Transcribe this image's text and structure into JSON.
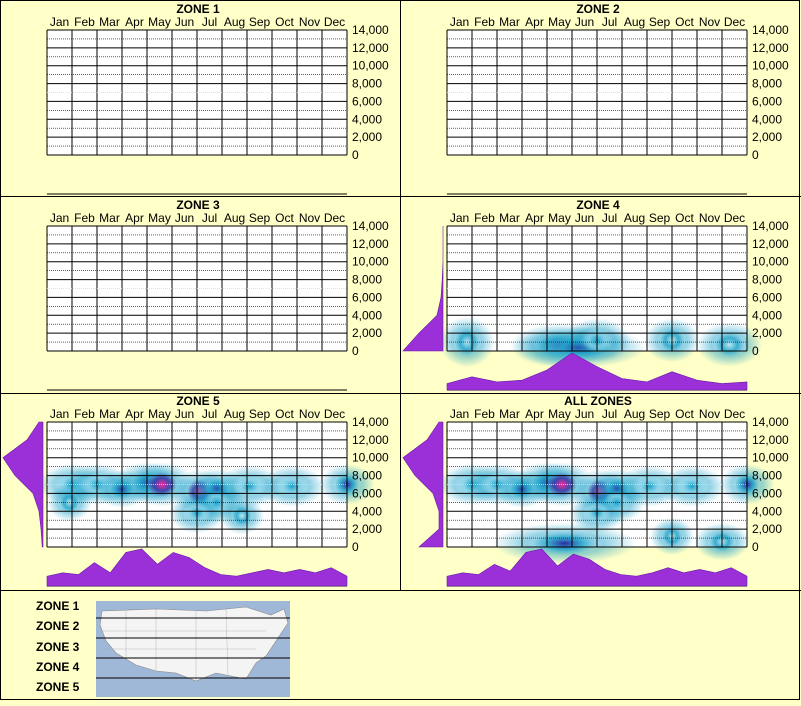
{
  "months": [
    "Jan",
    "Feb",
    "Mar",
    "Apr",
    "May",
    "Jun",
    "Jul",
    "Aug",
    "Sep",
    "Oct",
    "Nov",
    "Dec"
  ],
  "y_ticks": [
    "0",
    "2,000",
    "4,000",
    "6,000",
    "8,000",
    "10,000",
    "12,000",
    "14,000"
  ],
  "colors": {
    "background": "#ffffc8",
    "grid": "#000000",
    "density": "#9b30d8",
    "heat_low": "#bfe8f0",
    "heat_mid": "#1aa0c8",
    "heat_high": "#2a2aa0",
    "heat_peak": "#ff2aa0"
  },
  "chart_data": [
    {
      "type": "heatmap",
      "title": "ZONE 1",
      "ylim": [
        0,
        14000
      ],
      "cells": [],
      "month_profile": [],
      "elev_profile": []
    },
    {
      "type": "heatmap",
      "title": "ZONE 2",
      "ylim": [
        0,
        14000
      ],
      "cells": [],
      "month_profile": [],
      "elev_profile": []
    },
    {
      "type": "heatmap",
      "title": "ZONE 3",
      "ylim": [
        0,
        14000
      ],
      "cells": [],
      "month_profile": [],
      "elev_profile": []
    },
    {
      "type": "heatmap",
      "title": "ZONE 4",
      "ylim": [
        0,
        14000
      ],
      "cells": [
        {
          "month": 0.3,
          "elev": 1000,
          "w": 0.5,
          "h": 900,
          "v": 0.25
        },
        {
          "month": 4.0,
          "elev": 600,
          "w": 0.9,
          "h": 700,
          "v": 0.7
        },
        {
          "month": 4.8,
          "elev": 400,
          "w": 1.2,
          "h": 600,
          "v": 0.8
        },
        {
          "month": 5.5,
          "elev": 1200,
          "w": 0.6,
          "h": 700,
          "v": 0.35
        },
        {
          "month": 8.5,
          "elev": 1200,
          "w": 0.5,
          "h": 700,
          "v": 0.25
        },
        {
          "month": 10.8,
          "elev": 700,
          "w": 0.6,
          "h": 700,
          "v": 0.25
        }
      ],
      "month_profile": [
        0.1,
        0.3,
        0.15,
        0.2,
        0.5,
        1.0,
        0.6,
        0.25,
        0.15,
        0.45,
        0.2,
        0.1,
        0.15
      ],
      "elev_profile": [
        1.0,
        0.6,
        0.15,
        0.05,
        0.02,
        0,
        0,
        0
      ]
    },
    {
      "type": "heatmap",
      "title": "ZONE 5",
      "ylim": [
        0,
        14000
      ],
      "cells": [
        {
          "month": 0.5,
          "elev": 7000,
          "w": 0.6,
          "h": 600,
          "v": 0.45
        },
        {
          "month": 1.5,
          "elev": 7000,
          "w": 0.6,
          "h": 600,
          "v": 0.4
        },
        {
          "month": 2.5,
          "elev": 6500,
          "w": 0.5,
          "h": 500,
          "v": 0.75
        },
        {
          "month": 3.5,
          "elev": 7200,
          "w": 0.6,
          "h": 600,
          "v": 0.6
        },
        {
          "month": 4.1,
          "elev": 7000,
          "w": 0.6,
          "h": 700,
          "v": 1.0
        },
        {
          "month": 5.6,
          "elev": 6200,
          "w": 0.5,
          "h": 700,
          "v": 1.0
        },
        {
          "month": 6.3,
          "elev": 6500,
          "w": 0.5,
          "h": 600,
          "v": 0.6
        },
        {
          "month": 6.3,
          "elev": 5000,
          "w": 0.5,
          "h": 600,
          "v": 0.45
        },
        {
          "month": 7.6,
          "elev": 6800,
          "w": 0.6,
          "h": 600,
          "v": 0.35
        },
        {
          "month": 9.3,
          "elev": 6800,
          "w": 0.6,
          "h": 600,
          "v": 0.35
        },
        {
          "month": 11.5,
          "elev": 7000,
          "w": 0.5,
          "h": 600,
          "v": 0.7
        },
        {
          "month": 5.5,
          "elev": 3800,
          "w": 0.5,
          "h": 600,
          "v": 0.4
        },
        {
          "month": 7.3,
          "elev": 3500,
          "w": 0.4,
          "h": 500,
          "v": 0.3
        },
        {
          "month": 0.4,
          "elev": 5000,
          "w": 0.4,
          "h": 500,
          "v": 0.3
        }
      ],
      "month_profile": [
        0.2,
        0.3,
        0.25,
        0.6,
        0.3,
        0.9,
        1.0,
        0.55,
        0.9,
        0.75,
        0.45,
        0.25,
        0.2,
        0.3,
        0.4,
        0.3,
        0.4,
        0.3,
        0.45,
        0.2
      ],
      "elev_profile": [
        0.02,
        0.05,
        0.1,
        0.25,
        0.7,
        1.0,
        0.4,
        0.1
      ]
    },
    {
      "type": "heatmap",
      "title": "ALL ZONES",
      "ylim": [
        0,
        14000
      ],
      "cells": [
        {
          "month": 0.5,
          "elev": 7000,
          "w": 0.6,
          "h": 600,
          "v": 0.45
        },
        {
          "month": 1.5,
          "elev": 7000,
          "w": 0.6,
          "h": 600,
          "v": 0.4
        },
        {
          "month": 2.5,
          "elev": 6500,
          "w": 0.5,
          "h": 500,
          "v": 0.75
        },
        {
          "month": 3.5,
          "elev": 7200,
          "w": 0.6,
          "h": 600,
          "v": 0.6
        },
        {
          "month": 4.1,
          "elev": 7000,
          "w": 0.6,
          "h": 700,
          "v": 1.0
        },
        {
          "month": 5.6,
          "elev": 6200,
          "w": 0.5,
          "h": 700,
          "v": 1.0
        },
        {
          "month": 6.3,
          "elev": 6500,
          "w": 0.5,
          "h": 600,
          "v": 0.6
        },
        {
          "month": 6.3,
          "elev": 5000,
          "w": 0.5,
          "h": 600,
          "v": 0.45
        },
        {
          "month": 7.6,
          "elev": 6800,
          "w": 0.6,
          "h": 600,
          "v": 0.35
        },
        {
          "month": 9.3,
          "elev": 6800,
          "w": 0.6,
          "h": 600,
          "v": 0.35
        },
        {
          "month": 11.5,
          "elev": 7000,
          "w": 0.5,
          "h": 600,
          "v": 0.7
        },
        {
          "month": 5.5,
          "elev": 3800,
          "w": 0.5,
          "h": 600,
          "v": 0.4
        },
        {
          "month": 4.2,
          "elev": 400,
          "w": 1.3,
          "h": 600,
          "v": 0.8
        },
        {
          "month": 8.5,
          "elev": 1200,
          "w": 0.4,
          "h": 500,
          "v": 0.3
        },
        {
          "month": 10.5,
          "elev": 600,
          "w": 0.5,
          "h": 500,
          "v": 0.25
        }
      ],
      "month_profile": [
        0.2,
        0.3,
        0.25,
        0.55,
        0.35,
        0.9,
        1.0,
        0.5,
        0.85,
        0.7,
        0.4,
        0.25,
        0.2,
        0.3,
        0.45,
        0.3,
        0.4,
        0.3,
        0.45,
        0.2
      ],
      "elev_profile": [
        0.6,
        0.1,
        0.1,
        0.25,
        0.7,
        1.0,
        0.4,
        0.1
      ]
    }
  ],
  "legend": {
    "zones": [
      "ZONE 1",
      "ZONE 2",
      "ZONE 3",
      "ZONE 4",
      "ZONE 5"
    ]
  }
}
